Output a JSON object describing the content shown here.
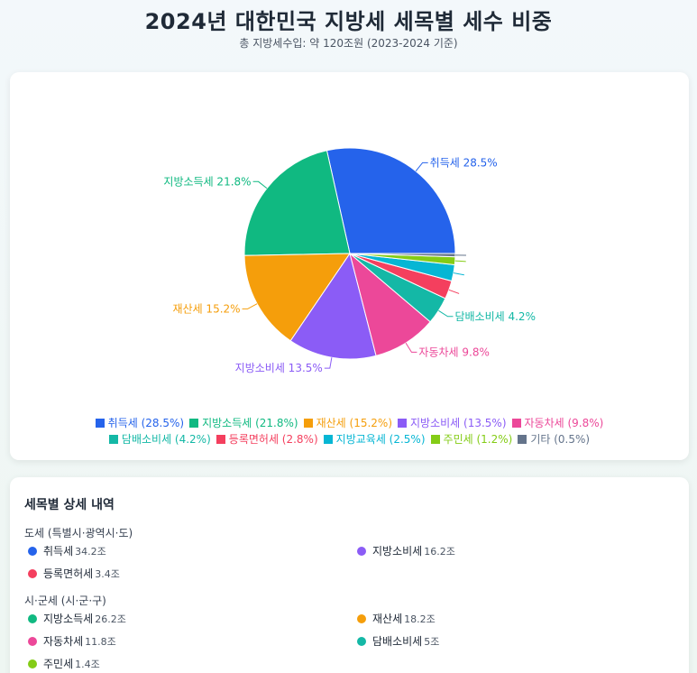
{
  "header": {
    "title": "2024년 대한민국 지방세 세목별 세수 비중",
    "subtitle": "총 지방세수입: 약 120조원 (2023-2024 기준)"
  },
  "chart_data": {
    "type": "pie",
    "title": "2024년 대한민국 지방세 세목별 세수 비중",
    "unit": "%",
    "slices": [
      {
        "name": "취득세",
        "value": 28.5,
        "color": "#2563eb",
        "label": "취득세 28.5%",
        "legend": "취득세 (28.5%)"
      },
      {
        "name": "지방소득세",
        "value": 21.8,
        "color": "#10b981",
        "label": "지방소득세 21.8%",
        "legend": "지방소득세 (21.8%)"
      },
      {
        "name": "재산세",
        "value": 15.2,
        "color": "#f59e0b",
        "label": "재산세 15.2%",
        "legend": "재산세 (15.2%)"
      },
      {
        "name": "지방소비세",
        "value": 13.5,
        "color": "#8b5cf6",
        "label": "지방소비세 13.5%",
        "legend": "지방소비세 (13.5%)"
      },
      {
        "name": "자동차세",
        "value": 9.8,
        "color": "#ec4899",
        "label": "자동차세 9.8%",
        "legend": "자동차세 (9.8%)"
      },
      {
        "name": "담배소비세",
        "value": 4.2,
        "color": "#14b8a6",
        "label": "담배소비세 4.2%",
        "legend": "담배소비세 (4.2%)"
      },
      {
        "name": "등록면허세",
        "value": 2.8,
        "color": "#f43f5e",
        "label": "",
        "legend": "등록면허세 (2.8%)"
      },
      {
        "name": "지방교육세",
        "value": 2.5,
        "color": "#06b6d4",
        "label": "",
        "legend": "지방교육세 (2.5%)"
      },
      {
        "name": "주민세",
        "value": 1.2,
        "color": "#84cc16",
        "label": "",
        "legend": "주민세 (1.2%)"
      },
      {
        "name": "기타",
        "value": 0.5,
        "color": "#64748b",
        "label": "",
        "legend": "기타 (0.5%)"
      }
    ],
    "legend_position": "bottom"
  },
  "detail": {
    "title": "세목별 상세 내역",
    "groups": [
      {
        "title": "도세 (특별시·광역시·도)",
        "items": [
          {
            "name": "취득세",
            "value": "34.2조",
            "color": "#2563eb"
          },
          {
            "name": "지방소비세",
            "value": "16.2조",
            "color": "#8b5cf6"
          },
          {
            "name": "등록면허세",
            "value": "3.4조",
            "color": "#f43f5e"
          }
        ]
      },
      {
        "title": "시·군세 (시·군·구)",
        "items": [
          {
            "name": "지방소득세",
            "value": "26.2조",
            "color": "#10b981"
          },
          {
            "name": "재산세",
            "value": "18.2조",
            "color": "#f59e0b"
          },
          {
            "name": "자동차세",
            "value": "11.8조",
            "color": "#ec4899"
          },
          {
            "name": "담배소비세",
            "value": "5조",
            "color": "#14b8a6"
          },
          {
            "name": "주민세",
            "value": "1.4조",
            "color": "#84cc16"
          }
        ]
      }
    ]
  }
}
